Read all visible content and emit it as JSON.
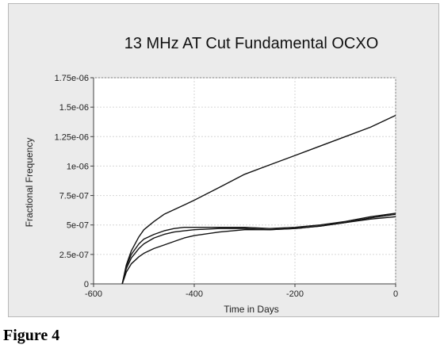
{
  "caption": "Figure 4",
  "chart_data": {
    "type": "line",
    "title": "13 MHz AT Cut Fundamental OCXO",
    "xlabel": "Time in Days",
    "ylabel": "Fractional Frequency",
    "xlim": [
      -600,
      0
    ],
    "ylim": [
      0,
      1.75e-06
    ],
    "x_ticks": [
      -600,
      -400,
      -200,
      0
    ],
    "x_tick_labels": [
      "-600",
      "-400",
      "-200",
      "0"
    ],
    "y_ticks": [
      0,
      2.5e-07,
      5e-07,
      7.5e-07,
      1e-06,
      1.25e-06,
      1.5e-06,
      1.75e-06
    ],
    "y_tick_labels": [
      "0",
      "2.5e-07",
      "5e-07",
      "7.5e-07",
      "1e-06",
      "1.25e-06",
      "1.5e-06",
      "1.75e-06"
    ],
    "grid": true,
    "legend": "none",
    "series": [
      {
        "x": [
          -543,
          -535,
          -525,
          -510,
          -500,
          -480,
          -460,
          -440,
          -420,
          -400,
          -350,
          -300,
          -250,
          -200,
          -150,
          -100,
          -50,
          0
        ],
        "values": [
          0.0,
          1.6e-07,
          2.8e-07,
          4e-07,
          4.6e-07,
          5.3e-07,
          5.9e-07,
          6.3e-07,
          6.7e-07,
          7.1e-07,
          8.2e-07,
          9.3e-07,
          1.01e-06,
          1.09e-06,
          1.17e-06,
          1.25e-06,
          1.33e-06,
          1.43e-06
        ]
      },
      {
        "x": [
          -543,
          -535,
          -525,
          -510,
          -500,
          -480,
          -460,
          -440,
          -420,
          -400,
          -350,
          -300,
          -250,
          -200,
          -150,
          -100,
          -50,
          0
        ],
        "values": [
          0.0,
          1.5e-07,
          2.5e-07,
          3.4e-07,
          3.8e-07,
          4.2e-07,
          4.5e-07,
          4.7e-07,
          4.8e-07,
          4.8e-07,
          4.8e-07,
          4.8e-07,
          4.7e-07,
          4.8e-07,
          5e-07,
          5.3e-07,
          5.7e-07,
          6e-07
        ]
      },
      {
        "x": [
          -543,
          -535,
          -525,
          -510,
          -500,
          -480,
          -460,
          -440,
          -420,
          -400,
          -350,
          -300,
          -250,
          -200,
          -150,
          -100,
          -50,
          0
        ],
        "values": [
          0.0,
          1e-07,
          1.7e-07,
          2.3e-07,
          2.6e-07,
          3e-07,
          3.3e-07,
          3.6e-07,
          3.9e-07,
          4.1e-07,
          4.4e-07,
          4.6e-07,
          4.6e-07,
          4.7e-07,
          4.9e-07,
          5.2e-07,
          5.5e-07,
          5.7e-07
        ]
      },
      {
        "x": [
          -543,
          -535,
          -525,
          -510,
          -500,
          -480,
          -460,
          -440,
          -420,
          -400,
          -350,
          -300,
          -250,
          -200,
          -150,
          -100,
          -50,
          0
        ],
        "values": [
          0.0,
          1.3e-07,
          2.2e-07,
          3e-07,
          3.4e-07,
          3.9e-07,
          4.2e-07,
          4.4e-07,
          4.5e-07,
          4.6e-07,
          4.7e-07,
          4.7e-07,
          4.6e-07,
          4.7e-07,
          4.9e-07,
          5.2e-07,
          5.6e-07,
          5.9e-07
        ]
      }
    ]
  }
}
